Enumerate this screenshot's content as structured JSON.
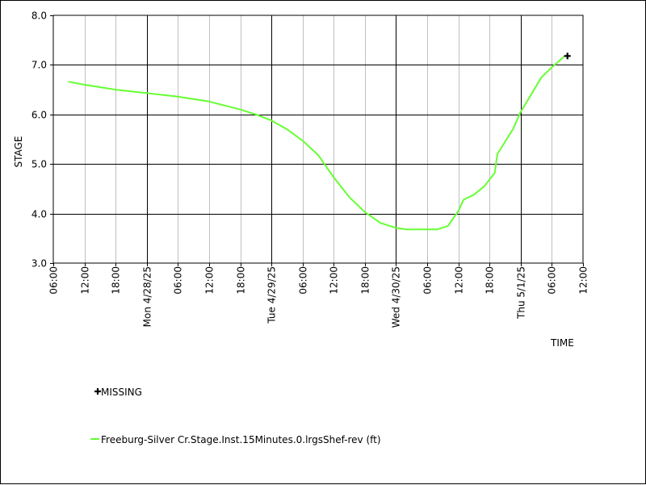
{
  "chart_data": {
    "type": "line",
    "title": "",
    "xlabel": "TIME",
    "ylabel": "STAGE",
    "x_range": [
      "2025-04-27 06:00",
      "2025-05-01 12:00"
    ],
    "ylim": [
      3.0,
      8.0
    ],
    "y_ticks": [
      "3.0",
      "4.0",
      "5.0",
      "6.0",
      "7.0",
      "8.0"
    ],
    "x_ticks": [
      {
        "t": "2025-04-27 06:00",
        "label": "06:00",
        "major": false
      },
      {
        "t": "2025-04-27 12:00",
        "label": "12:00",
        "major": false
      },
      {
        "t": "2025-04-27 18:00",
        "label": "18:00",
        "major": false
      },
      {
        "t": "2025-04-28 00:00",
        "label": "Mon 4/28/25",
        "major": true
      },
      {
        "t": "2025-04-28 06:00",
        "label": "06:00",
        "major": false
      },
      {
        "t": "2025-04-28 12:00",
        "label": "12:00",
        "major": false
      },
      {
        "t": "2025-04-28 18:00",
        "label": "18:00",
        "major": false
      },
      {
        "t": "2025-04-29 00:00",
        "label": "Tue 4/29/25",
        "major": true
      },
      {
        "t": "2025-04-29 06:00",
        "label": "06:00",
        "major": false
      },
      {
        "t": "2025-04-29 12:00",
        "label": "12:00",
        "major": false
      },
      {
        "t": "2025-04-29 18:00",
        "label": "18:00",
        "major": false
      },
      {
        "t": "2025-04-30 00:00",
        "label": "Wed 4/30/25",
        "major": true
      },
      {
        "t": "2025-04-30 06:00",
        "label": "06:00",
        "major": false
      },
      {
        "t": "2025-04-30 12:00",
        "label": "12:00",
        "major": false
      },
      {
        "t": "2025-04-30 18:00",
        "label": "18:00",
        "major": false
      },
      {
        "t": "2025-05-01 00:00",
        "label": "Thu 5/1/25",
        "major": true
      },
      {
        "t": "2025-05-01 06:00",
        "label": "06:00",
        "major": false
      },
      {
        "t": "2025-05-01 12:00",
        "label": "12:00",
        "major": false
      }
    ],
    "grid": true,
    "series": [
      {
        "name": "Freeburg-Silver Cr.Stage.Inst.15Minutes.0.lrgsShef-rev (ft)",
        "color": "#66ff33",
        "points": [
          [
            "2025-04-27 09:00",
            6.66
          ],
          [
            "2025-04-27 12:00",
            6.6
          ],
          [
            "2025-04-27 18:00",
            6.5
          ],
          [
            "2025-04-28 00:00",
            6.43
          ],
          [
            "2025-04-28 06:00",
            6.36
          ],
          [
            "2025-04-28 12:00",
            6.26
          ],
          [
            "2025-04-28 18:00",
            6.1
          ],
          [
            "2025-04-28 21:00",
            6.0
          ],
          [
            "2025-04-29 00:00",
            5.88
          ],
          [
            "2025-04-29 03:00",
            5.7
          ],
          [
            "2025-04-29 06:00",
            5.47
          ],
          [
            "2025-04-29 09:00",
            5.18
          ],
          [
            "2025-04-29 12:00",
            4.73
          ],
          [
            "2025-04-29 15:00",
            4.33
          ],
          [
            "2025-04-29 18:00",
            4.03
          ],
          [
            "2025-04-29 21:00",
            3.81
          ],
          [
            "2025-04-30 00:00",
            3.71
          ],
          [
            "2025-04-30 02:00",
            3.68
          ],
          [
            "2025-04-30 06:00",
            3.68
          ],
          [
            "2025-04-30 08:00",
            3.68
          ],
          [
            "2025-04-30 10:00",
            3.75
          ],
          [
            "2025-04-30 12:00",
            4.05
          ],
          [
            "2025-04-30 13:00",
            4.28
          ],
          [
            "2025-04-30 15:00",
            4.38
          ],
          [
            "2025-04-30 17:00",
            4.55
          ],
          [
            "2025-04-30 19:00",
            4.82
          ],
          [
            "2025-04-30 19:30",
            5.2
          ],
          [
            "2025-04-30 21:00",
            5.45
          ],
          [
            "2025-04-30 22:30",
            5.7
          ],
          [
            "2025-05-01 00:00",
            6.05
          ],
          [
            "2025-05-01 02:00",
            6.4
          ],
          [
            "2025-05-01 04:00",
            6.75
          ],
          [
            "2025-05-01 06:00",
            6.95
          ],
          [
            "2025-05-01 08:30",
            7.18
          ]
        ]
      }
    ],
    "markers": [
      {
        "name": "MISSING",
        "symbol": "plus",
        "color": "#000000",
        "point": [
          "2025-05-01 09:00",
          7.18
        ]
      }
    ],
    "legend": {
      "placement": "bottom-left",
      "order": [
        "MISSING",
        "Freeburg-Silver Cr.Stage.Inst.15Minutes.0.lrgsShef-rev (ft)"
      ]
    }
  }
}
